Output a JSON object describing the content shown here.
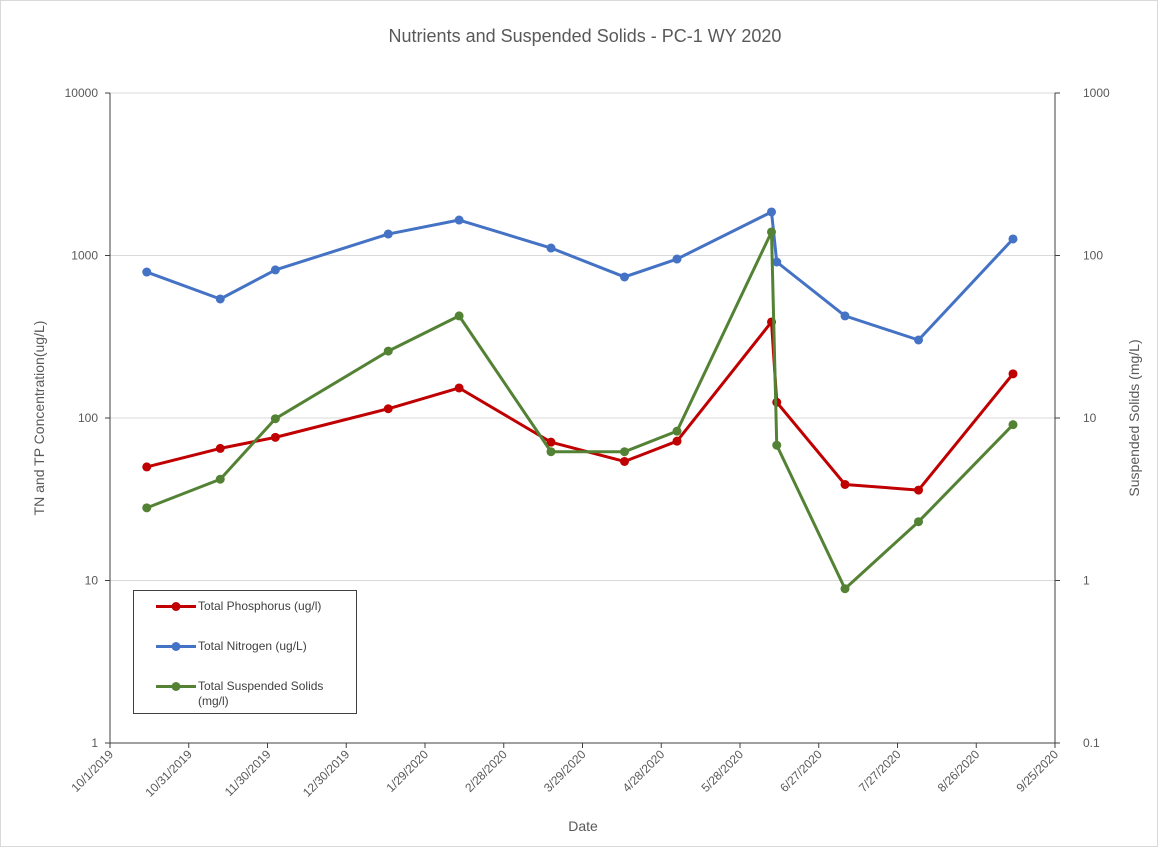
{
  "chart_data": {
    "type": "line",
    "title": "Nutrients and Suspended Solids - PC-1 WY 2020",
    "x_label": "Date",
    "y_label": "TN and TP Concentration(ug/L)",
    "y2_label": "Suspended Solids (mg/L)",
    "x": [
      "2019-10-15",
      "2019-11-12",
      "2019-12-03",
      "2020-01-15",
      "2020-02-11",
      "2020-03-17",
      "2020-04-14",
      "2020-05-04",
      "2020-06-09",
      "2020-06-11",
      "2020-07-07",
      "2020-08-04",
      "2020-09-09"
    ],
    "xlim": [
      "2019-10-01",
      "2020-09-25"
    ],
    "xticks": [
      {
        "value": "2019-10-01",
        "label": "10/1/2019"
      },
      {
        "value": "2019-10-31",
        "label": "10/31/2019"
      },
      {
        "value": "2019-11-30",
        "label": "11/30/2019"
      },
      {
        "value": "2019-12-30",
        "label": "12/30/2019"
      },
      {
        "value": "2020-01-29",
        "label": "1/29/2020"
      },
      {
        "value": "2020-02-28",
        "label": "2/28/2020"
      },
      {
        "value": "2020-03-29",
        "label": "3/29/2020"
      },
      {
        "value": "2020-04-28",
        "label": "4/28/2020"
      },
      {
        "value": "2020-05-28",
        "label": "5/28/2020"
      },
      {
        "value": "2020-06-27",
        "label": "6/27/2020"
      },
      {
        "value": "2020-07-27",
        "label": "7/27/2020"
      },
      {
        "value": "2020-08-26",
        "label": "8/26/2020"
      },
      {
        "value": "2020-09-25",
        "label": "9/25/2020"
      }
    ],
    "ylim": [
      1,
      10000
    ],
    "yticks": [
      1,
      10,
      100,
      1000,
      10000
    ],
    "y_log": true,
    "y2lim": [
      0.1,
      1000
    ],
    "y2ticks": [
      0.1,
      1,
      10,
      100,
      1000
    ],
    "y2_log": true,
    "grid": true,
    "legend": "lower left",
    "series": [
      {
        "name": "Total Phosphorus (ug/l)",
        "color": "#c00000",
        "values": [
          50,
          65,
          76,
          114,
          153,
          71,
          54,
          72,
          390,
          125,
          39,
          36,
          187
        ]
      },
      {
        "name": "Total Nitrogen (ug/L)",
        "color": "#4472c4",
        "values": [
          791,
          540,
          815,
          1355,
          1653,
          1112,
          738,
          951,
          1853,
          912,
          425,
          302,
          1264
        ]
      },
      {
        "name": "Total Suspended Solids (mg/l)",
        "color": "#548235",
        "axis": "y2",
        "values": [
          2.8,
          4.2,
          9.9,
          25.8,
          42.5,
          6.2,
          6.2,
          8.3,
          139.6,
          6.8,
          0.89,
          2.3,
          9.1
        ]
      }
    ]
  }
}
